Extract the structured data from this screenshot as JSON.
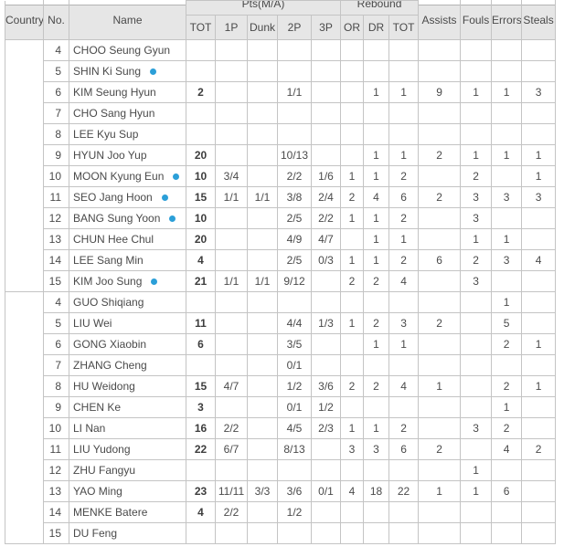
{
  "colors": {
    "header_bg": "#e6e6e6",
    "grid_border": "#c4c4c4",
    "header_border": "#a9a9a9",
    "text": "#4a4a4a",
    "starter_dot": "#2b9fd8"
  },
  "table": {
    "headers": {
      "country": "Country",
      "no": "No.",
      "name": "Name",
      "pts_group": "Pts(M/A)",
      "rebound_group": "Rebound",
      "pts_cols": [
        "TOT",
        "1P",
        "Dunk",
        "2P",
        "3P"
      ],
      "reb_cols": [
        "OR",
        "DR",
        "TOT"
      ],
      "assists": "Assists",
      "fouls": "Fouls",
      "errors": "Errors",
      "steals": "Steals"
    },
    "stat_keys": [
      "pts_tot",
      "1p",
      "dunk",
      "2p",
      "3p",
      "reb_or",
      "reb_dr",
      "reb_tot",
      "assists",
      "fouls",
      "errors",
      "steals"
    ],
    "teams": [
      {
        "country": "",
        "players": [
          {
            "no": "4",
            "name": "CHOO Seung Gyun",
            "starter": false,
            "stats": [
              "",
              "",
              "",
              "",
              "",
              "",
              "",
              "",
              "",
              "",
              "",
              ""
            ]
          },
          {
            "no": "5",
            "name": "SHIN Ki Sung",
            "starter": true,
            "stats": [
              "",
              "",
              "",
              "",
              "",
              "",
              "",
              "",
              "",
              "",
              "",
              ""
            ]
          },
          {
            "no": "6",
            "name": "KIM Seung Hyun",
            "starter": false,
            "stats": [
              "2",
              "",
              "",
              "1/1",
              "",
              "",
              "1",
              "1",
              "9",
              "1",
              "1",
              "3"
            ]
          },
          {
            "no": "7",
            "name": "CHO Sang Hyun",
            "starter": false,
            "stats": [
              "",
              "",
              "",
              "",
              "",
              "",
              "",
              "",
              "",
              "",
              "",
              ""
            ]
          },
          {
            "no": "8",
            "name": "LEE Kyu Sup",
            "starter": false,
            "stats": [
              "",
              "",
              "",
              "",
              "",
              "",
              "",
              "",
              "",
              "",
              "",
              ""
            ]
          },
          {
            "no": "9",
            "name": "HYUN Joo Yup",
            "starter": false,
            "stats": [
              "20",
              "",
              "",
              "10/13",
              "",
              "",
              "1",
              "1",
              "2",
              "1",
              "1",
              "1"
            ]
          },
          {
            "no": "10",
            "name": "MOON Kyung Eun",
            "starter": true,
            "stats": [
              "10",
              "3/4",
              "",
              "2/2",
              "1/6",
              "1",
              "1",
              "2",
              "",
              "2",
              "",
              "1"
            ]
          },
          {
            "no": "11",
            "name": "SEO Jang Hoon",
            "starter": true,
            "stats": [
              "15",
              "1/1",
              "1/1",
              "3/8",
              "2/4",
              "2",
              "4",
              "6",
              "2",
              "3",
              "3",
              "3"
            ]
          },
          {
            "no": "12",
            "name": "BANG Sung Yoon",
            "starter": true,
            "stats": [
              "10",
              "",
              "",
              "2/5",
              "2/2",
              "1",
              "1",
              "2",
              "",
              "3",
              "",
              ""
            ]
          },
          {
            "no": "13",
            "name": "CHUN Hee Chul",
            "starter": false,
            "stats": [
              "20",
              "",
              "",
              "4/9",
              "4/7",
              "",
              "1",
              "1",
              "",
              "1",
              "1",
              ""
            ]
          },
          {
            "no": "14",
            "name": "LEE Sang Min",
            "starter": false,
            "stats": [
              "4",
              "",
              "",
              "2/5",
              "0/3",
              "1",
              "1",
              "2",
              "6",
              "2",
              "3",
              "4"
            ]
          },
          {
            "no": "15",
            "name": "KIM Joo Sung",
            "starter": true,
            "stats": [
              "21",
              "1/1",
              "1/1",
              "9/12",
              "",
              "2",
              "2",
              "4",
              "",
              "3",
              "",
              ""
            ]
          }
        ]
      },
      {
        "country": "",
        "players": [
          {
            "no": "4",
            "name": "GUO Shiqiang",
            "starter": false,
            "stats": [
              "",
              "",
              "",
              "",
              "",
              "",
              "",
              "",
              "",
              "",
              "1",
              ""
            ]
          },
          {
            "no": "5",
            "name": "LIU Wei",
            "starter": false,
            "stats": [
              "11",
              "",
              "",
              "4/4",
              "1/3",
              "1",
              "2",
              "3",
              "2",
              "",
              "5",
              ""
            ]
          },
          {
            "no": "6",
            "name": "GONG Xiaobin",
            "starter": false,
            "stats": [
              "6",
              "",
              "",
              "3/5",
              "",
              "",
              "1",
              "1",
              "",
              "",
              "2",
              "1"
            ]
          },
          {
            "no": "7",
            "name": "ZHANG Cheng",
            "starter": false,
            "stats": [
              "",
              "",
              "",
              "0/1",
              "",
              "",
              "",
              "",
              "",
              "",
              "",
              ""
            ]
          },
          {
            "no": "8",
            "name": "HU Weidong",
            "starter": false,
            "stats": [
              "15",
              "4/7",
              "",
              "1/2",
              "3/6",
              "2",
              "2",
              "4",
              "1",
              "",
              "2",
              "1"
            ]
          },
          {
            "no": "9",
            "name": "CHEN Ke",
            "starter": false,
            "stats": [
              "3",
              "",
              "",
              "0/1",
              "1/2",
              "",
              "",
              "",
              "",
              "",
              "1",
              ""
            ]
          },
          {
            "no": "10",
            "name": "LI Nan",
            "starter": false,
            "stats": [
              "16",
              "2/2",
              "",
              "4/5",
              "2/3",
              "1",
              "1",
              "2",
              "",
              "3",
              "2",
              ""
            ]
          },
          {
            "no": "11",
            "name": "LIU Yudong",
            "starter": false,
            "stats": [
              "22",
              "6/7",
              "",
              "8/13",
              "",
              "3",
              "3",
              "6",
              "2",
              "",
              "4",
              "2"
            ]
          },
          {
            "no": "12",
            "name": "ZHU Fangyu",
            "starter": false,
            "stats": [
              "",
              "",
              "",
              "",
              "",
              "",
              "",
              "",
              "",
              "1",
              "",
              ""
            ]
          },
          {
            "no": "13",
            "name": "YAO Ming",
            "starter": false,
            "stats": [
              "23",
              "11/11",
              "3/3",
              "3/6",
              "0/1",
              "4",
              "18",
              "22",
              "1",
              "1",
              "6",
              ""
            ]
          },
          {
            "no": "14",
            "name": "MENKE Batere",
            "starter": false,
            "stats": [
              "4",
              "2/2",
              "",
              "1/2",
              "",
              "",
              "",
              "",
              "",
              "",
              "",
              ""
            ]
          },
          {
            "no": "15",
            "name": "DU Feng",
            "starter": false,
            "stats": [
              "",
              "",
              "",
              "",
              "",
              "",
              "",
              "",
              "",
              "",
              "",
              ""
            ]
          }
        ]
      }
    ]
  }
}
